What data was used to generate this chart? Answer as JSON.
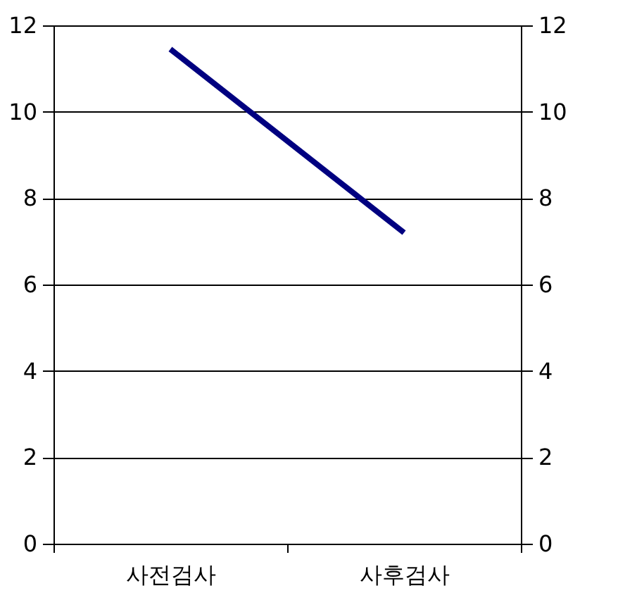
{
  "chart_data": {
    "type": "line",
    "categories": [
      "사전검사",
      "사후검사"
    ],
    "series": [
      {
        "color": "#000080",
        "values": [
          11.45,
          7.2
        ]
      }
    ],
    "ylim": [
      0,
      12
    ],
    "yticks": [
      0,
      2,
      4,
      6,
      8,
      10,
      12
    ],
    "y2lim": [
      0,
      12
    ],
    "y2ticks": [
      0,
      2,
      4,
      6,
      8,
      10,
      12
    ],
    "grid": "y",
    "legend": false,
    "marker": "none",
    "line_style": "solid"
  }
}
